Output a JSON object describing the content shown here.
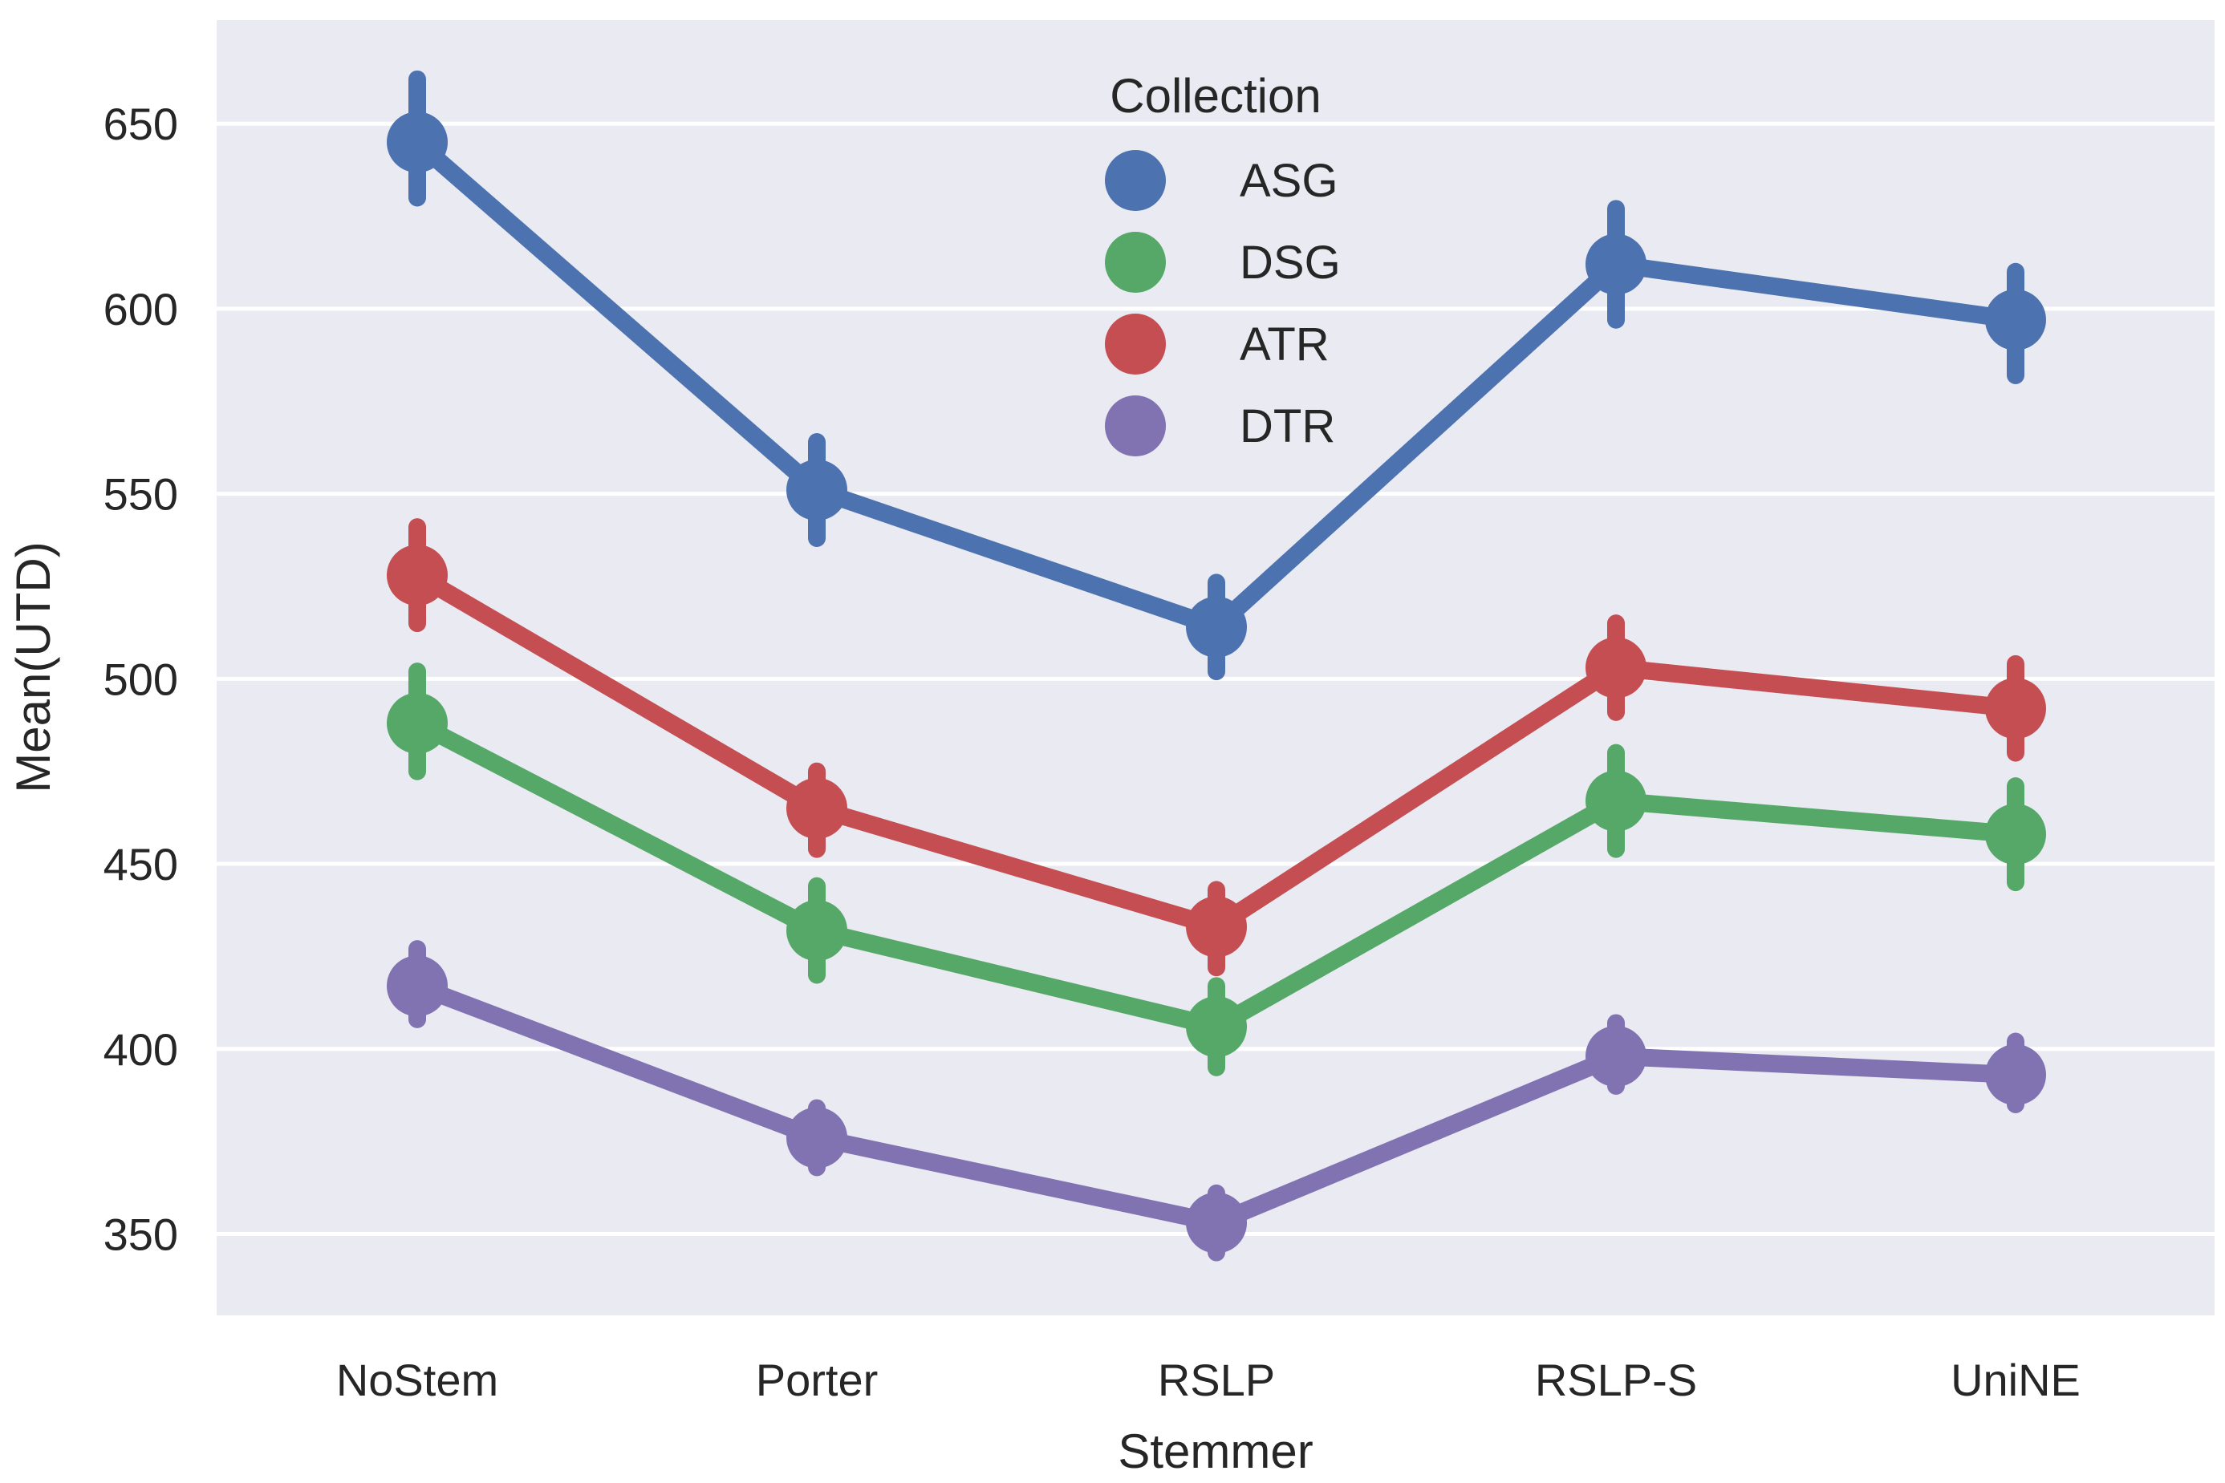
{
  "chart_data": {
    "type": "line",
    "title": "",
    "xlabel": "Stemmer",
    "ylabel": "Mean(UTD)",
    "categories": [
      "NoStem",
      "Porter",
      "RSLP",
      "RSLP-S",
      "UniNE"
    ],
    "ylim": [
      328,
      678
    ],
    "yticks": [
      350,
      400,
      450,
      500,
      550,
      600,
      650
    ],
    "ytick_labels": [
      "350",
      "400",
      "450",
      "500",
      "550",
      "600",
      "650"
    ],
    "grid": true,
    "legend": {
      "title": "Collection",
      "placement": "top-center"
    },
    "series": [
      {
        "name": "ASG",
        "color": "#4c72b0",
        "values": [
          645,
          551,
          514,
          612,
          597
        ],
        "err_low": [
          630,
          538,
          502,
          597,
          582
        ],
        "err_high": [
          662,
          564,
          526,
          627,
          610
        ]
      },
      {
        "name": "DSG",
        "color": "#55a868",
        "values": [
          488,
          432,
          406,
          467,
          458
        ],
        "err_low": [
          475,
          420,
          395,
          454,
          445
        ],
        "err_high": [
          502,
          444,
          417,
          480,
          471
        ]
      },
      {
        "name": "ATR",
        "color": "#c44e52",
        "values": [
          528,
          465,
          433,
          503,
          492
        ],
        "err_low": [
          515,
          454,
          422,
          491,
          480
        ],
        "err_high": [
          541,
          475,
          443,
          515,
          504
        ]
      },
      {
        "name": "DTR",
        "color": "#8172b2",
        "values": [
          417,
          376,
          353,
          398,
          393
        ],
        "err_low": [
          408,
          368,
          345,
          390,
          385
        ],
        "err_high": [
          427,
          384,
          361,
          407,
          402
        ]
      }
    ]
  }
}
